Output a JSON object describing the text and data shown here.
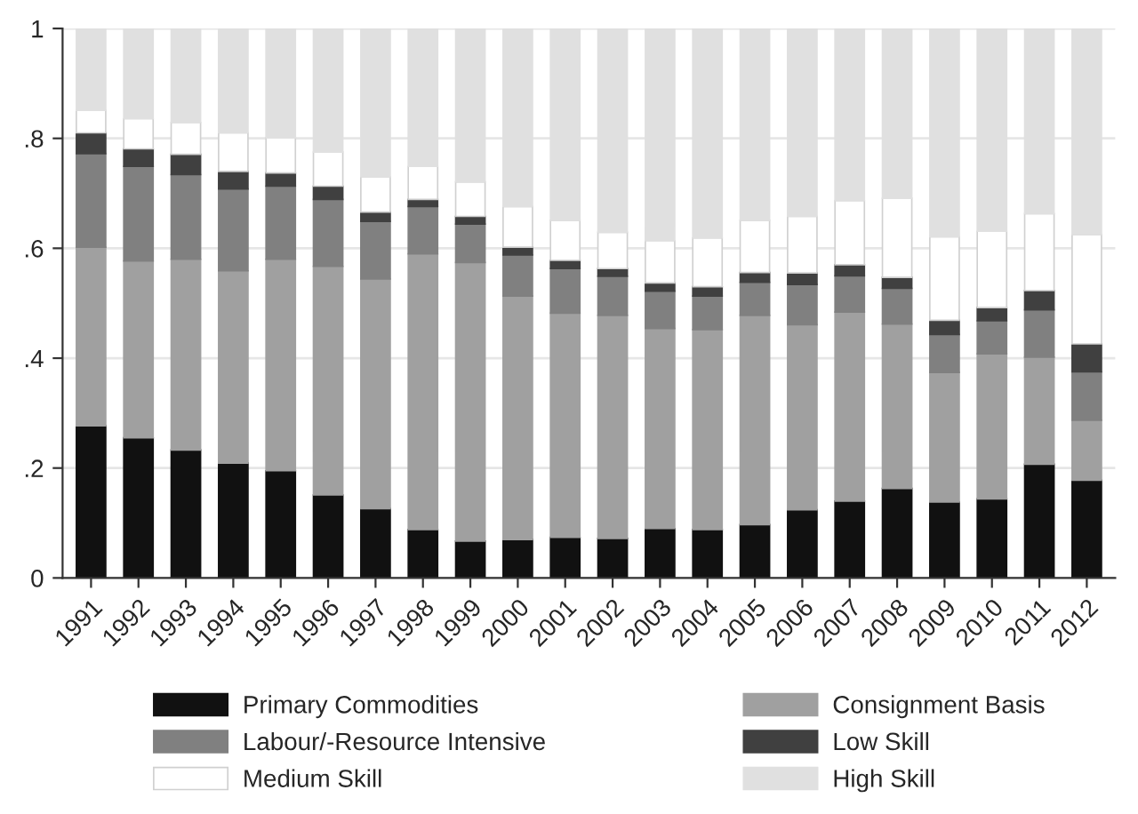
{
  "chart_data": {
    "type": "bar",
    "stacked": true,
    "categories": [
      "1991",
      "1992",
      "1993",
      "1994",
      "1995",
      "1996",
      "1997",
      "1998",
      "1999",
      "2000",
      "2001",
      "2002",
      "2003",
      "2004",
      "2005",
      "2006",
      "2007",
      "2008",
      "2009",
      "2010",
      "2011",
      "2012"
    ],
    "series": [
      {
        "name": "Primary Commodities",
        "color": "#111111",
        "values": [
          0.277,
          0.255,
          0.233,
          0.209,
          0.195,
          0.151,
          0.126,
          0.088,
          0.067,
          0.07,
          0.074,
          0.072,
          0.09,
          0.088,
          0.097,
          0.124,
          0.14,
          0.163,
          0.138,
          0.144,
          0.207,
          0.178
        ]
      },
      {
        "name": "Consignment Basis",
        "color": "#a0a0a0",
        "values": [
          0.325,
          0.322,
          0.347,
          0.35,
          0.385,
          0.416,
          0.418,
          0.502,
          0.507,
          0.443,
          0.408,
          0.406,
          0.364,
          0.364,
          0.381,
          0.337,
          0.344,
          0.299,
          0.236,
          0.264,
          0.195,
          0.109
        ]
      },
      {
        "name": "Labour/-Resource Intensive",
        "color": "#808080",
        "values": [
          0.17,
          0.172,
          0.154,
          0.149,
          0.133,
          0.122,
          0.105,
          0.086,
          0.07,
          0.075,
          0.081,
          0.071,
          0.068,
          0.061,
          0.06,
          0.073,
          0.066,
          0.065,
          0.069,
          0.06,
          0.086,
          0.088
        ]
      },
      {
        "name": "Low Skill",
        "color": "#404040",
        "values": [
          0.038,
          0.032,
          0.037,
          0.032,
          0.024,
          0.024,
          0.017,
          0.013,
          0.014,
          0.014,
          0.015,
          0.014,
          0.015,
          0.017,
          0.018,
          0.021,
          0.02,
          0.02,
          0.026,
          0.024,
          0.035,
          0.051
        ]
      },
      {
        "name": "Medium Skill",
        "color": "#ffffff",
        "values": [
          0.041,
          0.055,
          0.058,
          0.07,
          0.064,
          0.062,
          0.064,
          0.06,
          0.063,
          0.074,
          0.073,
          0.066,
          0.077,
          0.089,
          0.095,
          0.103,
          0.117,
          0.144,
          0.152,
          0.139,
          0.14,
          0.199
        ]
      },
      {
        "name": "High Skill",
        "color": "#e0e0e0",
        "values": [
          0.149,
          0.164,
          0.171,
          0.19,
          0.199,
          0.225,
          0.27,
          0.251,
          0.279,
          0.324,
          0.349,
          0.371,
          0.386,
          0.381,
          0.349,
          0.342,
          0.313,
          0.309,
          0.379,
          0.369,
          0.337,
          0.375
        ]
      }
    ],
    "ylim": [
      0,
      1
    ],
    "yticks": [
      0,
      {
        "value": 0.2,
        "label": ".2"
      },
      {
        "value": 0.4,
        "label": ".4"
      },
      {
        "value": 0.6,
        "label": ".6"
      },
      {
        "value": 0.8,
        "label": ".8"
      },
      1
    ],
    "grid": "y",
    "legend": "bottom"
  }
}
